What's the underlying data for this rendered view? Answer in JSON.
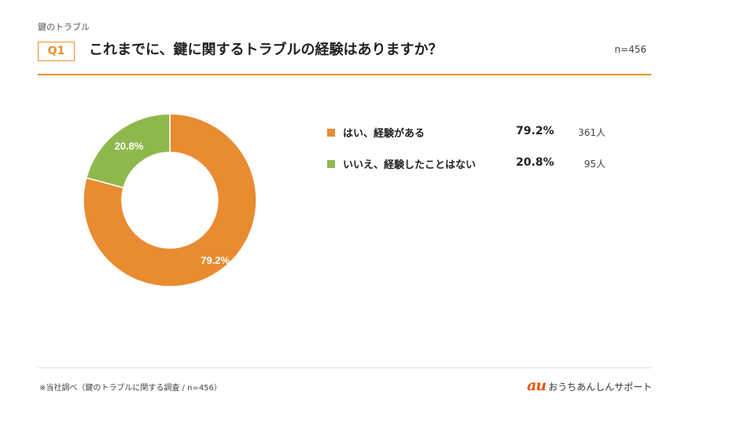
{
  "header": {
    "category": "鍵のトラブル",
    "question_number": "Q1",
    "question": "これまでに、鍵に関するトラブルの経験はありますか？",
    "sample_size": "n=456"
  },
  "colors": {
    "accent": "#e8902f",
    "yes": "#e98b31",
    "no": "#8fb84c",
    "brand": "#eb5505"
  },
  "legend": [
    {
      "label": "はい、経験がある",
      "percent": "79.2%",
      "count": "361人",
      "color": "#e98b31"
    },
    {
      "label": "いいえ、経験したことはない",
      "percent": "20.8%",
      "count": "95人",
      "color": "#8fb84c"
    }
  ],
  "chart_data": {
    "type": "pie",
    "donut": true,
    "categories": [
      "はい、経験がある",
      "いいえ、経験したことはない"
    ],
    "values": [
      79.2,
      20.8
    ],
    "counts": [
      361,
      95
    ],
    "data_labels": [
      "79.2%",
      "20.8%"
    ],
    "colors": [
      "#e98b31",
      "#8fb84c"
    ],
    "title": "",
    "legend": "right"
  },
  "footer": {
    "source_note": "※当社調べ（鍵のトラブルに関する調査 / n=456）",
    "brand_logo": "au",
    "brand_name": "おうちあんしんサポート"
  }
}
